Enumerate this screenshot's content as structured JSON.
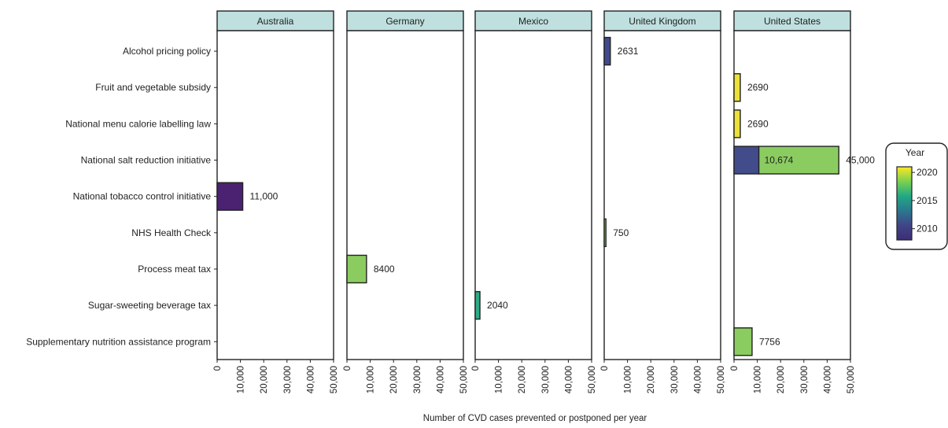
{
  "chart_data": {
    "type": "bar",
    "orientation": "horizontal",
    "xlabel": "Number of CVD cases prevented or postponed per year",
    "xlim": [
      0,
      50000
    ],
    "xticks": [
      0,
      10000,
      20000,
      30000,
      40000,
      50000
    ],
    "xtick_labels": [
      "0",
      "10,000",
      "20,000",
      "30,000",
      "40,000",
      "50,000"
    ],
    "categories": [
      "Alcohol pricing policy",
      "Fruit and vegetable subsidy",
      "National menu calorie labelling law",
      "National salt reduction initiative",
      "National tobacco control initiative",
      "NHS Health Check",
      "Process meat tax",
      "Sugar-sweeting beverage tax",
      "Supplementary nutrition assistance program"
    ],
    "panels": [
      "Australia",
      "Germany",
      "Mexico",
      "United Kingdom",
      "United States"
    ],
    "color_scale": {
      "title": "Year",
      "min": 2008,
      "max": 2021,
      "ticks": [
        2010,
        2015,
        2020
      ],
      "colors": [
        "#3b2f76",
        "#414487",
        "#2a788e",
        "#22a884",
        "#7ad151",
        "#fde725"
      ]
    },
    "bars": [
      {
        "panel": "Australia",
        "category": "National tobacco control initiative",
        "start": 0,
        "value": 11000,
        "label": "11,000",
        "color": "#4b2171"
      },
      {
        "panel": "Germany",
        "category": "Process meat tax",
        "start": 0,
        "value": 8400,
        "label": "8400",
        "color": "#8bcc61"
      },
      {
        "panel": "Mexico",
        "category": "Sugar-sweeting beverage tax",
        "start": 0,
        "value": 2040,
        "label": "2040",
        "color": "#2fab86"
      },
      {
        "panel": "United Kingdom",
        "category": "Alcohol pricing policy",
        "start": 0,
        "value": 2631,
        "label": "2631",
        "color": "#414a8e"
      },
      {
        "panel": "United Kingdom",
        "category": "NHS Health Check",
        "start": 0,
        "value": 750,
        "label": "750",
        "color": "#8bcc61"
      },
      {
        "panel": "United States",
        "category": "Fruit and vegetable subsidy",
        "start": 0,
        "value": 2690,
        "label": "2690",
        "color": "#ece03a"
      },
      {
        "panel": "United States",
        "category": "National menu calorie labelling law",
        "start": 0,
        "value": 2690,
        "label": "2690",
        "color": "#ece03a"
      },
      {
        "panel": "United States",
        "category": "National salt reduction initiative",
        "start": 0,
        "value": 10674,
        "label": "",
        "color": "#434c8a"
      },
      {
        "panel": "United States",
        "category": "National salt reduction initiative",
        "start": 10674,
        "value": 45000,
        "label": "45,000",
        "color": "#8bcc61"
      },
      {
        "panel": "United States",
        "category": "Supplementary nutrition assistance program",
        "start": 0,
        "value": 7756,
        "label": "7756",
        "color": "#8bcc61"
      }
    ],
    "inner_labels": [
      {
        "panel": "United States",
        "category": "National salt reduction initiative",
        "value": 10674,
        "label": "10,674"
      }
    ],
    "legend_position": "right"
  }
}
